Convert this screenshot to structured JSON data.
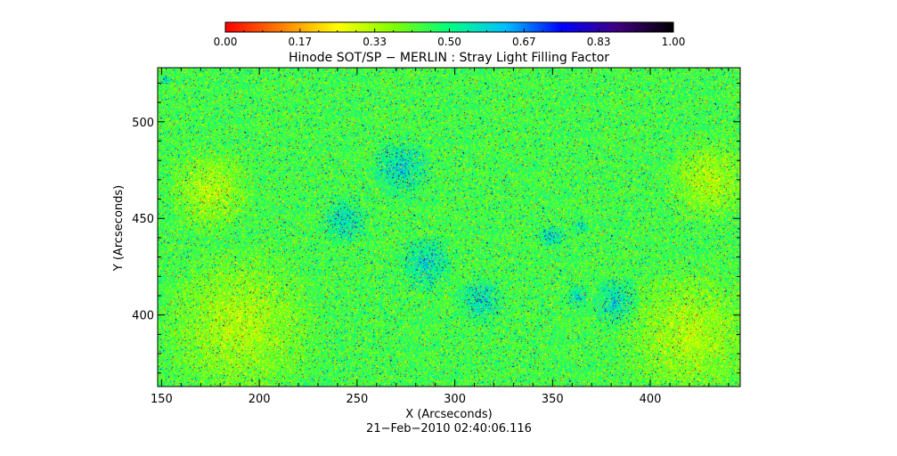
{
  "chart_data": {
    "type": "heatmap",
    "title": "Hinode SOT/SP − MERLIN : Stray Light Filling Factor",
    "xlabel": "X (Arcseconds)",
    "ylabel": "Y (Arcseconds)",
    "xlim": [
      148,
      446
    ],
    "ylim": [
      363,
      528
    ],
    "x_ticks": [
      150,
      200,
      250,
      300,
      350,
      400
    ],
    "y_ticks": [
      400,
      450,
      500
    ],
    "colorbar": {
      "range": [
        0,
        1
      ],
      "tick_labels": [
        "0.00",
        "0.17",
        "0.33",
        "0.50",
        "0.67",
        "0.83",
        "1.00"
      ],
      "colors": [
        "#ff0000",
        "#ff8000",
        "#ffff00",
        "#80ff00",
        "#00ff80",
        "#00c0ff",
        "#0000ff",
        "#400080",
        "#000000"
      ]
    },
    "field_summary": {
      "typical_value": 0.45,
      "low_value_speckle": 0.15,
      "high_value_clumps": 0.8
    },
    "high_value_regions": [
      {
        "x": 285,
        "y": 427,
        "radius": 16
      },
      {
        "x": 313,
        "y": 408,
        "radius": 14
      },
      {
        "x": 349,
        "y": 441,
        "radius": 8
      },
      {
        "x": 364,
        "y": 446,
        "radius": 5
      },
      {
        "x": 362,
        "y": 410,
        "radius": 7
      },
      {
        "x": 243,
        "y": 449,
        "radius": 14
      },
      {
        "x": 272,
        "y": 476,
        "radius": 18
      },
      {
        "x": 382,
        "y": 407,
        "radius": 14
      },
      {
        "x": 152,
        "y": 522,
        "radius": 3
      }
    ],
    "low_value_regions": [
      {
        "x": 190,
        "y": 395,
        "radius": 45
      },
      {
        "x": 420,
        "y": 390,
        "radius": 40
      },
      {
        "x": 175,
        "y": 465,
        "radius": 25
      },
      {
        "x": 430,
        "y": 470,
        "radius": 25
      }
    ],
    "footer": "21−Feb−2010 02:40:06.116"
  }
}
